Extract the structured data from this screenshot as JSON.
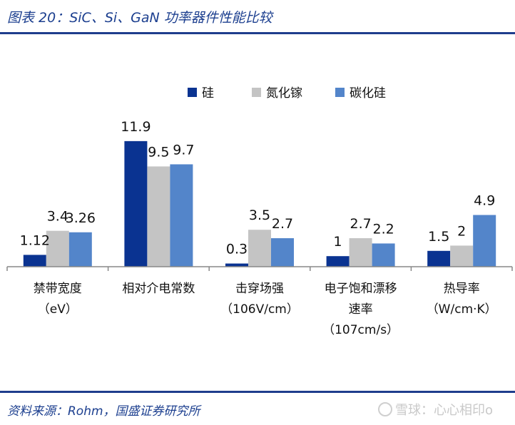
{
  "header": {
    "title": "图表 20：SiC、Si、GaN 功率器件性能比较"
  },
  "footer": {
    "source": "资料来源：Rohm，国盛证券研究所",
    "watermark": "雪球：心心相印o"
  },
  "colors": {
    "si": "#0a3391",
    "gan": "#c4c4c4",
    "sic": "#5385ca",
    "text": "#1c3f8f"
  },
  "chart_data": {
    "type": "bar",
    "categories": [
      [
        "禁带宽度",
        "（eV）"
      ],
      [
        "相对介电常数"
      ],
      [
        "击穿场强",
        "（106V/cm）"
      ],
      [
        "电子饱和漂移",
        "速率",
        "（107cm/s）"
      ],
      [
        "热导率",
        "（W/cm·K）"
      ]
    ],
    "series": [
      {
        "name": "硅",
        "values": [
          1.12,
          11.9,
          0.3,
          1,
          1.5
        ],
        "labels": [
          "1.12",
          "11.9",
          "0.3",
          "1",
          "1.5"
        ]
      },
      {
        "name": "氮化镓",
        "values": [
          3.4,
          9.5,
          3.5,
          2.7,
          2
        ],
        "labels": [
          "3.4",
          "9.5",
          "3.5",
          "2.7",
          "2"
        ]
      },
      {
        "name": "碳化硅",
        "values": [
          3.26,
          9.7,
          2.7,
          2.2,
          4.9
        ],
        "labels": [
          "3.26",
          "9.7",
          "2.7",
          "2.2",
          "4.9"
        ]
      }
    ],
    "ylim": [
      0,
      14
    ],
    "legend": "top-right"
  }
}
